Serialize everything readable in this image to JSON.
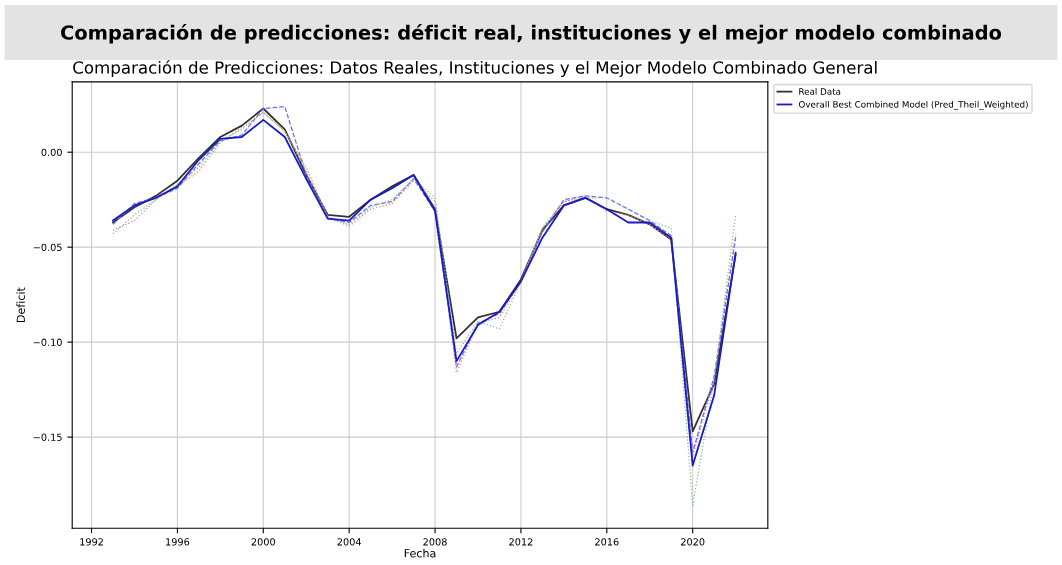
{
  "chart_data": {
    "type": "line",
    "title": "Comparación de predicciones: déficit real, instituciones y el mejor modelo combinado",
    "subtitle": "Comparación de Predicciones: Datos Reales, Instituciones y el Mejor Modelo Combinado General",
    "xlabel": "Fecha",
    "ylabel": "Deficit",
    "x": [
      1993,
      1994,
      1995,
      1996,
      1997,
      1998,
      1999,
      2000,
      2001,
      2002,
      2003,
      2004,
      2005,
      2006,
      2007,
      2008,
      2009,
      2010,
      2011,
      2012,
      2013,
      2014,
      2015,
      2016,
      2017,
      2018,
      2019,
      2020,
      2021,
      2022
    ],
    "series": [
      {
        "name": "Real Data",
        "color": "#333333",
        "line_style": "solid",
        "values": [
          -0.037,
          -0.029,
          -0.023,
          -0.015,
          -0.003,
          0.008,
          0.014,
          0.023,
          0.012,
          -0.012,
          -0.033,
          -0.034,
          -0.025,
          -0.018,
          -0.012,
          -0.03,
          -0.098,
          -0.087,
          -0.084,
          -0.067,
          -0.041,
          -0.028,
          -0.024,
          -0.03,
          -0.033,
          -0.038,
          -0.046,
          -0.147,
          -0.122,
          -0.054
        ]
      },
      {
        "color": "#f08080",
        "line_style": "dotted",
        "values": [
          -0.041,
          -0.036,
          -0.025,
          -0.018,
          -0.01,
          0.005,
          0.013,
          0.021,
          0.011,
          -0.008,
          -0.034,
          -0.039,
          -0.03,
          -0.027,
          -0.015,
          -0.026,
          -0.116,
          -0.09,
          -0.087,
          -0.068,
          -0.04,
          -0.026,
          -0.023,
          -0.031,
          -0.033,
          -0.038,
          -0.046,
          -0.16,
          -0.12,
          -0.043
        ]
      },
      {
        "color": "#6a6aff",
        "line_style": "dashed",
        "values": [
          -0.038,
          -0.027,
          -0.024,
          -0.019,
          -0.006,
          0.006,
          0.009,
          0.023,
          0.024,
          -0.012,
          -0.035,
          -0.037,
          -0.028,
          -0.026,
          -0.014,
          -0.031,
          -0.113,
          -0.09,
          -0.085,
          -0.068,
          -0.042,
          -0.025,
          -0.023,
          -0.024,
          -0.03,
          -0.036,
          -0.044,
          -0.158,
          -0.118,
          -0.045
        ]
      },
      {
        "color": "#80c080",
        "line_style": "dotted",
        "values": [
          -0.043,
          -0.033,
          -0.025,
          -0.017,
          -0.008,
          0.006,
          0.012,
          0.021,
          0.011,
          -0.01,
          -0.034,
          -0.038,
          -0.029,
          -0.025,
          -0.014,
          -0.024,
          -0.106,
          -0.089,
          -0.093,
          -0.068,
          -0.04,
          -0.026,
          -0.024,
          -0.024,
          -0.03,
          -0.036,
          -0.04,
          -0.186,
          -0.12,
          -0.033
        ]
      },
      {
        "name": "Overall Best Combined Model (Pred_Theil_Weighted)",
        "color": "#1a1acc",
        "line_style": "solid",
        "values": [
          -0.036,
          -0.028,
          -0.024,
          -0.018,
          -0.004,
          0.007,
          0.008,
          0.017,
          0.008,
          -0.014,
          -0.035,
          -0.036,
          -0.025,
          -0.019,
          -0.012,
          -0.031,
          -0.11,
          -0.091,
          -0.084,
          -0.068,
          -0.045,
          -0.028,
          -0.024,
          -0.03,
          -0.037,
          -0.037,
          -0.045,
          -0.165,
          -0.128,
          -0.053
        ]
      }
    ],
    "xlim": [
      1991.1,
      2023.5
    ],
    "xticks": [
      1992,
      1996,
      2000,
      2004,
      2008,
      2012,
      2016,
      2020
    ],
    "ylim": [
      -0.198,
      0.037
    ],
    "yticks": [
      {
        "value": 0,
        "label": "0.00"
      },
      {
        "value": -0.05,
        "label": "−0.05"
      },
      {
        "value": -0.1,
        "label": "−0.10"
      },
      {
        "value": -0.15,
        "label": "−0.15"
      }
    ],
    "grid": true,
    "legend": "top right",
    "marker": "none"
  }
}
